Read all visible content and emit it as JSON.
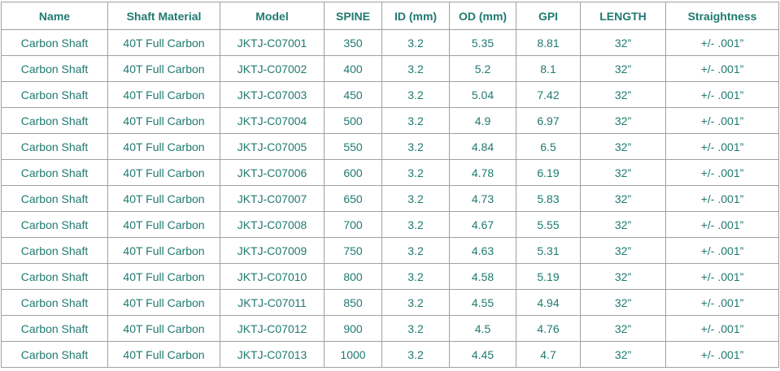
{
  "table": {
    "headers": [
      "Name",
      "Shaft Material",
      "Model",
      "SPINE",
      "ID (mm)",
      "OD (mm)",
      "GPI",
      "LENGTH",
      "Straightness"
    ],
    "rows": [
      [
        "Carbon Shaft",
        "40T Full Carbon",
        "JKTJ-C07001",
        "350",
        "3.2",
        "5.35",
        "8.81",
        "32”",
        "+/- .001”"
      ],
      [
        "Carbon Shaft",
        "40T Full Carbon",
        "JKTJ-C07002",
        "400",
        "3.2",
        "5.2",
        "8.1",
        "32”",
        "+/- .001”"
      ],
      [
        "Carbon Shaft",
        "40T Full Carbon",
        "JKTJ-C07003",
        "450",
        "3.2",
        "5.04",
        "7.42",
        "32”",
        "+/- .001”"
      ],
      [
        "Carbon Shaft",
        "40T Full Carbon",
        "JKTJ-C07004",
        "500",
        "3.2",
        "4.9",
        "6.97",
        "32”",
        "+/- .001”"
      ],
      [
        "Carbon Shaft",
        "40T Full Carbon",
        "JKTJ-C07005",
        "550",
        "3.2",
        "4.84",
        "6.5",
        "32”",
        "+/- .001”"
      ],
      [
        "Carbon Shaft",
        "40T Full Carbon",
        "JKTJ-C07006",
        "600",
        "3.2",
        "4.78",
        "6.19",
        "32”",
        "+/- .001”"
      ],
      [
        "Carbon Shaft",
        "40T Full Carbon",
        "JKTJ-C07007",
        "650",
        "3.2",
        "4.73",
        "5.83",
        "32”",
        "+/- .001”"
      ],
      [
        "Carbon Shaft",
        "40T Full Carbon",
        "JKTJ-C07008",
        "700",
        "3.2",
        "4.67",
        "5.55",
        "32”",
        "+/- .001”"
      ],
      [
        "Carbon Shaft",
        "40T Full Carbon",
        "JKTJ-C07009",
        "750",
        "3.2",
        "4.63",
        "5.31",
        "32”",
        "+/- .001”"
      ],
      [
        "Carbon Shaft",
        "40T Full Carbon",
        "JKTJ-C07010",
        "800",
        "3.2",
        "4.58",
        "5.19",
        "32”",
        "+/- .001”"
      ],
      [
        "Carbon Shaft",
        "40T Full Carbon",
        "JKTJ-C07011",
        "850",
        "3.2",
        "4.55",
        "4.94",
        "32”",
        "+/- .001”"
      ],
      [
        "Carbon Shaft",
        "40T Full Carbon",
        "JKTJ-C07012",
        "900",
        "3.2",
        "4.5",
        "4.76",
        "32”",
        "+/- .001”"
      ],
      [
        "Carbon Shaft",
        "40T Full Carbon",
        "JKTJ-C07013",
        "1000",
        "3.2",
        "4.45",
        "4.7",
        "32”",
        "+/- .001”"
      ]
    ]
  }
}
